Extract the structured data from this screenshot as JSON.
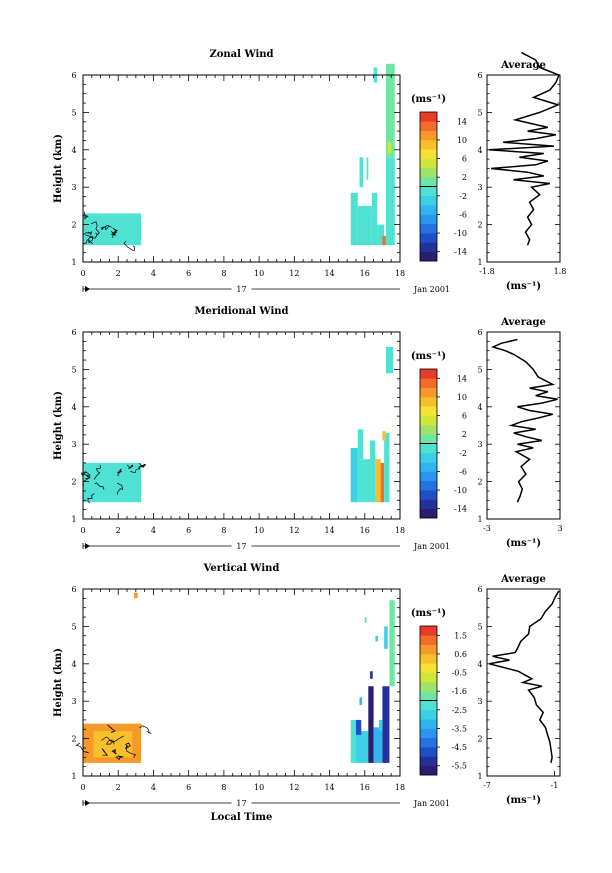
{
  "chart_data": [
    {
      "type": "heatmap",
      "title": "Zonal Wind",
      "ylabel": "Height (km)",
      "xlabel": "",
      "xlim": [
        0,
        18
      ],
      "ylim": [
        1,
        6
      ],
      "xticks": [
        "0",
        "2",
        "4",
        "6",
        "8",
        "10",
        "12",
        "14",
        "16",
        "18"
      ],
      "yticks": [
        "1",
        "2",
        "3",
        "4",
        "5",
        "6"
      ],
      "day_label": "17",
      "date_label": "Jan 2001",
      "data_blocks": [
        {
          "t": [
            0.0,
            3.3
          ],
          "z": [
            1.45,
            2.3
          ],
          "value": -1
        },
        {
          "t": [
            15.2,
            15.6
          ],
          "z": [
            1.45,
            2.85
          ],
          "value": -1
        },
        {
          "t": [
            15.6,
            16.4
          ],
          "z": [
            1.45,
            2.5
          ],
          "value": -1
        },
        {
          "t": [
            16.4,
            16.7
          ],
          "z": [
            1.45,
            2.3
          ],
          "value": -1
        },
        {
          "t": [
            16.4,
            16.7
          ],
          "z": [
            2.3,
            2.85
          ],
          "value": -1
        },
        {
          "t": [
            16.7,
            17.1
          ],
          "z": [
            1.45,
            2.0
          ],
          "value": -2
        },
        {
          "t": [
            17.0,
            17.2
          ],
          "z": [
            1.45,
            1.7
          ],
          "value": 12
        },
        {
          "t": [
            17.2,
            17.7
          ],
          "z": [
            1.45,
            3.8
          ],
          "value": -1
        },
        {
          "t": [
            17.2,
            17.7
          ],
          "z": [
            3.8,
            6.3
          ],
          "value": 1
        },
        {
          "t": [
            15.7,
            15.9
          ],
          "z": [
            3.0,
            3.8
          ],
          "value": -1
        },
        {
          "t": [
            16.1,
            16.2
          ],
          "z": [
            3.2,
            3.8
          ],
          "value": -1
        },
        {
          "t": [
            16.5,
            16.7
          ],
          "z": [
            5.8,
            6.2
          ],
          "value": -1
        },
        {
          "t": [
            17.3,
            17.5
          ],
          "z": [
            3.9,
            4.2
          ],
          "value": 4
        }
      ],
      "colorbar": {
        "unit": "(ms⁻¹)",
        "min": -16,
        "max": 16,
        "ticks": [
          "14",
          "10",
          "6",
          "2",
          "-2",
          "-6",
          "-10",
          "-14"
        ]
      },
      "average_profile": {
        "title": "Average",
        "xlabel": "(ms⁻¹)",
        "xticks": [
          "-1.8",
          "1.8"
        ],
        "xlim": [
          -1.8,
          1.8
        ],
        "ylim": [
          1,
          6
        ],
        "yticks": [
          "1",
          "2",
          "3",
          "4",
          "5",
          "6"
        ],
        "z": [
          1.45,
          1.6,
          1.8,
          2.0,
          2.2,
          2.4,
          2.6,
          2.8,
          3.0,
          3.1,
          3.2,
          3.3,
          3.4,
          3.5,
          3.6,
          3.7,
          3.8,
          3.9,
          4.0,
          4.1,
          4.2,
          4.3,
          4.4,
          4.5,
          4.6,
          4.8,
          5.0,
          5.2,
          5.4,
          5.6,
          5.8,
          6.0,
          6.2,
          6.4,
          6.6
        ],
        "x": [
          0.2,
          0.3,
          0.1,
          0.4,
          0.2,
          0.5,
          0.3,
          0.8,
          0.4,
          1.3,
          -0.5,
          1.0,
          0.2,
          -1.6,
          0.6,
          1.2,
          -0.2,
          1.0,
          -1.7,
          1.5,
          -1.0,
          0.6,
          1.6,
          0.2,
          1.2,
          -0.4,
          0.8,
          1.7,
          0.5,
          1.3,
          1.6,
          1.8,
          0.8,
          0.6,
          -0.1
        ]
      }
    },
    {
      "type": "heatmap",
      "title": "Meridional Wind",
      "ylabel": "Height (km)",
      "xlabel": "",
      "xlim": [
        0,
        18
      ],
      "ylim": [
        1,
        6
      ],
      "xticks": [
        "0",
        "2",
        "4",
        "6",
        "8",
        "10",
        "12",
        "14",
        "16",
        "18"
      ],
      "yticks": [
        "1",
        "2",
        "3",
        "4",
        "5",
        "6"
      ],
      "day_label": "17",
      "date_label": "Jan 2001",
      "data_blocks": [
        {
          "t": [
            0.0,
            3.3
          ],
          "z": [
            1.45,
            2.5
          ],
          "value": -1
        },
        {
          "t": [
            15.2,
            15.6
          ],
          "z": [
            1.45,
            2.9
          ],
          "value": -4
        },
        {
          "t": [
            15.6,
            16.3
          ],
          "z": [
            1.45,
            2.6
          ],
          "value": -1
        },
        {
          "t": [
            16.3,
            16.6
          ],
          "z": [
            1.45,
            3.1
          ],
          "value": -1
        },
        {
          "t": [
            16.6,
            16.9
          ],
          "z": [
            1.45,
            2.6
          ],
          "value": 8
        },
        {
          "t": [
            16.9,
            17.1
          ],
          "z": [
            1.45,
            2.5
          ],
          "value": 13
        },
        {
          "t": [
            17.1,
            17.4
          ],
          "z": [
            1.45,
            3.3
          ],
          "value": -2
        },
        {
          "t": [
            17.0,
            17.2
          ],
          "z": [
            3.1,
            3.35
          ],
          "value": 9
        },
        {
          "t": [
            17.2,
            17.6
          ],
          "z": [
            4.9,
            5.6
          ],
          "value": -2
        },
        {
          "t": [
            15.6,
            15.9
          ],
          "z": [
            2.6,
            3.4
          ],
          "value": -1
        }
      ],
      "colorbar": {
        "unit": "(ms⁻¹)",
        "min": -16,
        "max": 16,
        "ticks": [
          "14",
          "10",
          "6",
          "2",
          "-2",
          "-6",
          "-10",
          "-14"
        ]
      },
      "average_profile": {
        "title": "Average",
        "xlabel": "(ms⁻¹)",
        "xticks": [
          "-3",
          "3"
        ],
        "xlim": [
          -3,
          3
        ],
        "ylim": [
          1,
          6
        ],
        "yticks": [
          "1",
          "2",
          "3",
          "4",
          "5",
          "6"
        ],
        "z": [
          1.45,
          1.6,
          1.8,
          2.0,
          2.2,
          2.4,
          2.6,
          2.8,
          2.9,
          3.0,
          3.1,
          3.2,
          3.3,
          3.4,
          3.5,
          3.6,
          3.7,
          3.8,
          3.9,
          4.0,
          4.1,
          4.2,
          4.3,
          4.4,
          4.5,
          4.6,
          4.8,
          5.0,
          5.2,
          5.4,
          5.5,
          5.6,
          5.7,
          5.8
        ],
        "x": [
          -0.5,
          -0.3,
          -0.1,
          -0.4,
          0.2,
          -0.2,
          0.5,
          -0.6,
          0.8,
          -0.5,
          1.5,
          0.2,
          -0.8,
          1.0,
          -1.0,
          -0.2,
          1.2,
          2.4,
          0.5,
          -0.5,
          1.5,
          2.8,
          1.0,
          2.0,
          0.5,
          2.4,
          1.2,
          0.8,
          0.2,
          -0.8,
          -1.5,
          -2.5,
          -1.8,
          -0.5
        ]
      }
    },
    {
      "type": "heatmap",
      "title": "Vertical Wind",
      "ylabel": "Height (km)",
      "xlabel": "Local Time",
      "xlim": [
        0,
        18
      ],
      "ylim": [
        1,
        6
      ],
      "xticks": [
        "0",
        "2",
        "4",
        "6",
        "8",
        "10",
        "12",
        "14",
        "16",
        "18"
      ],
      "yticks": [
        "1",
        "2",
        "3",
        "4",
        "5",
        "6"
      ],
      "day_label": "17",
      "date_label": "Jan 2001",
      "data_blocks": [
        {
          "t": [
            0.0,
            3.3
          ],
          "z": [
            1.35,
            2.4
          ],
          "value": 0.8
        },
        {
          "t": [
            0.6,
            2.8
          ],
          "z": [
            1.5,
            2.2
          ],
          "value": 0.4
        },
        {
          "t": [
            2.9,
            3.1
          ],
          "z": [
            5.75,
            5.9
          ],
          "value": 0.6
        },
        {
          "t": [
            15.2,
            15.5
          ],
          "z": [
            1.35,
            2.5
          ],
          "value": -2.5
        },
        {
          "t": [
            15.5,
            16.2
          ],
          "z": [
            1.35,
            2.2
          ],
          "value": -3.0
        },
        {
          "t": [
            16.2,
            16.5
          ],
          "z": [
            1.35,
            3.4
          ],
          "value": -6.0
        },
        {
          "t": [
            16.5,
            17.0
          ],
          "z": [
            1.35,
            2.3
          ],
          "value": -3.5
        },
        {
          "t": [
            17.0,
            17.4
          ],
          "z": [
            1.35,
            3.4
          ],
          "value": -5.5
        },
        {
          "t": [
            17.4,
            17.7
          ],
          "z": [
            3.4,
            5.7
          ],
          "value": -1.8
        },
        {
          "t": [
            17.1,
            17.3
          ],
          "z": [
            4.4,
            5.0
          ],
          "value": -2.8
        },
        {
          "t": [
            15.5,
            15.8
          ],
          "z": [
            2.1,
            2.5
          ],
          "value": -5.0
        },
        {
          "t": [
            16.8,
            17.0
          ],
          "z": [
            2.2,
            2.5
          ],
          "value": -3.0
        },
        {
          "t": [
            16.3,
            16.45
          ],
          "z": [
            3.6,
            3.8
          ],
          "value": -5.5
        },
        {
          "t": [
            16.6,
            16.75
          ],
          "z": [
            4.6,
            4.75
          ],
          "value": -3.0
        },
        {
          "t": [
            15.7,
            15.85
          ],
          "z": [
            2.9,
            3.1
          ],
          "value": -3.5
        },
        {
          "t": [
            16.0,
            16.1
          ],
          "z": [
            5.1,
            5.25
          ],
          "value": -2.5
        }
      ],
      "colorbar": {
        "unit": "(ms⁻¹)",
        "min": -6.0,
        "max": 2.0,
        "ticks": [
          "1.5",
          "0.6",
          "-0.5",
          "-1.6",
          "-2.5",
          "-3.5",
          "-4.5",
          "-5.5"
        ]
      },
      "average_profile": {
        "title": "Average",
        "xlabel": "(ms⁻¹)",
        "xticks": [
          "-7",
          "-1"
        ],
        "xlim": [
          -7,
          -0.5
        ],
        "ylim": [
          1,
          6
        ],
        "yticks": [
          "1",
          "2",
          "3",
          "4",
          "5",
          "6"
        ],
        "z": [
          1.35,
          1.5,
          1.7,
          1.9,
          2.1,
          2.3,
          2.5,
          2.7,
          2.9,
          3.1,
          3.3,
          3.4,
          3.5,
          3.6,
          3.8,
          3.9,
          4.0,
          4.1,
          4.2,
          4.3,
          4.4,
          4.6,
          4.8,
          5.0,
          5.2,
          5.4,
          5.6,
          5.8,
          5.95
        ],
        "x": [
          -1.3,
          -1.2,
          -1.3,
          -1.4,
          -1.6,
          -1.8,
          -2.3,
          -2.0,
          -2.6,
          -2.8,
          -3.3,
          -2.1,
          -3.8,
          -3.0,
          -4.2,
          -5.5,
          -6.8,
          -5.0,
          -6.5,
          -4.5,
          -4.3,
          -4.0,
          -3.3,
          -3.2,
          -2.2,
          -1.8,
          -1.2,
          -0.9,
          -0.6
        ]
      }
    }
  ]
}
